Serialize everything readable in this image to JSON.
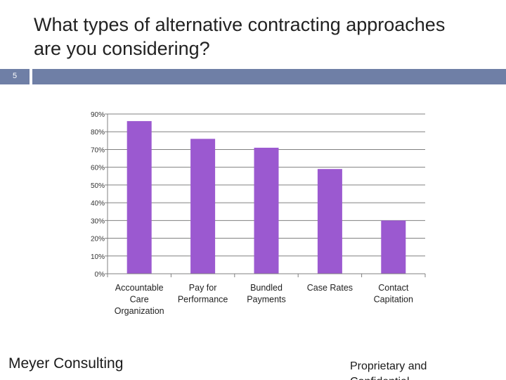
{
  "slide": {
    "title_line1": "What types of alternative contracting approaches",
    "title_line2": "are you considering?",
    "slide_number": "5",
    "accent_color": "#6f7fa6"
  },
  "footer": {
    "left": "Meyer Consulting",
    "right": "Proprietary and Confidential"
  },
  "chart_data": {
    "type": "bar",
    "title": "",
    "xlabel": "",
    "ylabel": "",
    "categories": [
      [
        "Accountable",
        "Care",
        "Organization"
      ],
      [
        "Pay for",
        "Performance"
      ],
      [
        "Bundled",
        "Payments"
      ],
      [
        "Case Rates"
      ],
      [
        "Contact",
        "Capitation"
      ]
    ],
    "values": [
      86,
      76,
      71,
      59,
      30
    ],
    "ylim": [
      0,
      90
    ],
    "yticks": [
      "0%",
      "10%",
      "20%",
      "30%",
      "40%",
      "50%",
      "60%",
      "70%",
      "80%",
      "90%"
    ],
    "grid": true,
    "bar_color": "#9b59d0",
    "grid_color": "#808080"
  }
}
